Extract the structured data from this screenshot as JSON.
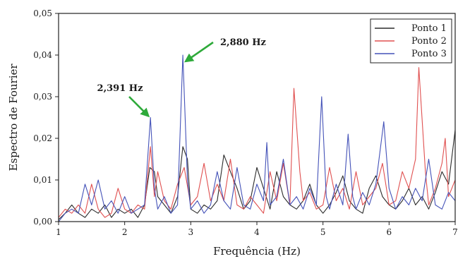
{
  "chart_data": {
    "type": "line",
    "xlabel": "Frequência (Hz)",
    "ylabel": "Espectro de Fourier",
    "xlim": [
      1,
      7
    ],
    "ylim": [
      0,
      0.05
    ],
    "x_ticks": [
      "1",
      "2",
      "3",
      "4",
      "5",
      "6",
      "7"
    ],
    "y_ticks": [
      "0,00",
      "0,01",
      "0,02",
      "0,03",
      "0,04",
      "0,05"
    ],
    "grid": false,
    "legend_position": "top-right",
    "annotations": [
      {
        "text": "2,880 Hz",
        "x": 2.88,
        "y": 0.0395,
        "arrow_color": "#2eaa3a"
      },
      {
        "text": "2,391 Hz",
        "x": 2.391,
        "y": 0.0245,
        "arrow_color": "#2eaa3a"
      }
    ],
    "series": [
      {
        "name": "Ponto 1",
        "color": "#2b2b2b",
        "points": [
          [
            1.0,
            0.0005
          ],
          [
            1.1,
            0.002
          ],
          [
            1.2,
            0.004
          ],
          [
            1.3,
            0.002
          ],
          [
            1.4,
            0.001
          ],
          [
            1.5,
            0.003
          ],
          [
            1.6,
            0.002
          ],
          [
            1.7,
            0.004
          ],
          [
            1.8,
            0.001
          ],
          [
            1.9,
            0.003
          ],
          [
            2.0,
            0.002
          ],
          [
            2.1,
            0.003
          ],
          [
            2.2,
            0.001
          ],
          [
            2.3,
            0.004
          ],
          [
            2.38,
            0.013
          ],
          [
            2.45,
            0.012
          ],
          [
            2.5,
            0.006
          ],
          [
            2.6,
            0.004
          ],
          [
            2.7,
            0.002
          ],
          [
            2.8,
            0.006
          ],
          [
            2.88,
            0.018
          ],
          [
            2.95,
            0.015
          ],
          [
            3.0,
            0.003
          ],
          [
            3.1,
            0.002
          ],
          [
            3.2,
            0.004
          ],
          [
            3.3,
            0.003
          ],
          [
            3.4,
            0.005
          ],
          [
            3.5,
            0.016
          ],
          [
            3.6,
            0.012
          ],
          [
            3.7,
            0.008
          ],
          [
            3.8,
            0.003
          ],
          [
            3.9,
            0.005
          ],
          [
            4.0,
            0.013
          ],
          [
            4.1,
            0.008
          ],
          [
            4.2,
            0.003
          ],
          [
            4.3,
            0.012
          ],
          [
            4.4,
            0.006
          ],
          [
            4.5,
            0.004
          ],
          [
            4.6,
            0.003
          ],
          [
            4.7,
            0.005
          ],
          [
            4.8,
            0.009
          ],
          [
            4.9,
            0.004
          ],
          [
            5.0,
            0.002
          ],
          [
            5.1,
            0.004
          ],
          [
            5.2,
            0.007
          ],
          [
            5.3,
            0.011
          ],
          [
            5.4,
            0.005
          ],
          [
            5.5,
            0.003
          ],
          [
            5.6,
            0.002
          ],
          [
            5.7,
            0.008
          ],
          [
            5.8,
            0.011
          ],
          [
            5.9,
            0.006
          ],
          [
            6.0,
            0.004
          ],
          [
            6.1,
            0.003
          ],
          [
            6.2,
            0.005
          ],
          [
            6.3,
            0.008
          ],
          [
            6.4,
            0.004
          ],
          [
            6.5,
            0.006
          ],
          [
            6.6,
            0.003
          ],
          [
            6.7,
            0.007
          ],
          [
            6.8,
            0.012
          ],
          [
            6.9,
            0.009
          ],
          [
            7.0,
            0.022
          ]
        ]
      },
      {
        "name": "Ponto 2",
        "color": "#e05050",
        "points": [
          [
            1.0,
            0.001
          ],
          [
            1.1,
            0.003
          ],
          [
            1.2,
            0.002
          ],
          [
            1.3,
            0.004
          ],
          [
            1.4,
            0.002
          ],
          [
            1.5,
            0.009
          ],
          [
            1.6,
            0.003
          ],
          [
            1.7,
            0.001
          ],
          [
            1.8,
            0.002
          ],
          [
            1.9,
            0.008
          ],
          [
            2.0,
            0.003
          ],
          [
            2.1,
            0.002
          ],
          [
            2.2,
            0.004
          ],
          [
            2.3,
            0.003
          ],
          [
            2.39,
            0.018
          ],
          [
            2.45,
            0.006
          ],
          [
            2.5,
            0.012
          ],
          [
            2.6,
            0.005
          ],
          [
            2.7,
            0.003
          ],
          [
            2.8,
            0.009
          ],
          [
            2.9,
            0.013
          ],
          [
            3.0,
            0.004
          ],
          [
            3.1,
            0.006
          ],
          [
            3.2,
            0.014
          ],
          [
            3.3,
            0.005
          ],
          [
            3.4,
            0.009
          ],
          [
            3.5,
            0.005
          ],
          [
            3.6,
            0.015
          ],
          [
            3.7,
            0.004
          ],
          [
            3.8,
            0.003
          ],
          [
            3.9,
            0.006
          ],
          [
            4.0,
            0.004
          ],
          [
            4.1,
            0.002
          ],
          [
            4.2,
            0.012
          ],
          [
            4.3,
            0.005
          ],
          [
            4.4,
            0.014
          ],
          [
            4.5,
            0.004
          ],
          [
            4.56,
            0.032
          ],
          [
            4.65,
            0.012
          ],
          [
            4.7,
            0.005
          ],
          [
            4.8,
            0.007
          ],
          [
            4.9,
            0.003
          ],
          [
            5.0,
            0.004
          ],
          [
            5.1,
            0.013
          ],
          [
            5.2,
            0.005
          ],
          [
            5.3,
            0.008
          ],
          [
            5.4,
            0.003
          ],
          [
            5.5,
            0.012
          ],
          [
            5.6,
            0.004
          ],
          [
            5.7,
            0.006
          ],
          [
            5.8,
            0.008
          ],
          [
            5.9,
            0.014
          ],
          [
            6.0,
            0.004
          ],
          [
            6.1,
            0.005
          ],
          [
            6.2,
            0.012
          ],
          [
            6.3,
            0.008
          ],
          [
            6.4,
            0.015
          ],
          [
            6.45,
            0.037
          ],
          [
            6.55,
            0.012
          ],
          [
            6.6,
            0.004
          ],
          [
            6.7,
            0.008
          ],
          [
            6.8,
            0.014
          ],
          [
            6.85,
            0.02
          ],
          [
            6.9,
            0.006
          ],
          [
            7.0,
            0.01
          ]
        ]
      },
      {
        "name": "Ponto 3",
        "color": "#4452b8",
        "points": [
          [
            1.0,
            0.0
          ],
          [
            1.1,
            0.002
          ],
          [
            1.2,
            0.003
          ],
          [
            1.3,
            0.002
          ],
          [
            1.4,
            0.009
          ],
          [
            1.5,
            0.004
          ],
          [
            1.6,
            0.01
          ],
          [
            1.7,
            0.003
          ],
          [
            1.8,
            0.005
          ],
          [
            1.9,
            0.002
          ],
          [
            2.0,
            0.006
          ],
          [
            2.1,
            0.002
          ],
          [
            2.2,
            0.003
          ],
          [
            2.3,
            0.004
          ],
          [
            2.39,
            0.025
          ],
          [
            2.45,
            0.008
          ],
          [
            2.5,
            0.003
          ],
          [
            2.6,
            0.006
          ],
          [
            2.7,
            0.002
          ],
          [
            2.8,
            0.004
          ],
          [
            2.88,
            0.04
          ],
          [
            2.95,
            0.01
          ],
          [
            3.0,
            0.003
          ],
          [
            3.1,
            0.005
          ],
          [
            3.2,
            0.002
          ],
          [
            3.3,
            0.004
          ],
          [
            3.4,
            0.012
          ],
          [
            3.5,
            0.005
          ],
          [
            3.6,
            0.003
          ],
          [
            3.7,
            0.013
          ],
          [
            3.8,
            0.004
          ],
          [
            3.9,
            0.003
          ],
          [
            4.0,
            0.009
          ],
          [
            4.1,
            0.005
          ],
          [
            4.15,
            0.019
          ],
          [
            4.2,
            0.004
          ],
          [
            4.3,
            0.006
          ],
          [
            4.4,
            0.015
          ],
          [
            4.5,
            0.004
          ],
          [
            4.6,
            0.006
          ],
          [
            4.7,
            0.003
          ],
          [
            4.8,
            0.008
          ],
          [
            4.9,
            0.004
          ],
          [
            4.98,
            0.03
          ],
          [
            5.05,
            0.006
          ],
          [
            5.1,
            0.003
          ],
          [
            5.2,
            0.009
          ],
          [
            5.3,
            0.004
          ],
          [
            5.38,
            0.021
          ],
          [
            5.45,
            0.006
          ],
          [
            5.5,
            0.003
          ],
          [
            5.6,
            0.007
          ],
          [
            5.7,
            0.004
          ],
          [
            5.8,
            0.009
          ],
          [
            5.92,
            0.024
          ],
          [
            6.0,
            0.008
          ],
          [
            6.1,
            0.003
          ],
          [
            6.2,
            0.006
          ],
          [
            6.3,
            0.004
          ],
          [
            6.4,
            0.008
          ],
          [
            6.5,
            0.005
          ],
          [
            6.6,
            0.015
          ],
          [
            6.7,
            0.004
          ],
          [
            6.8,
            0.003
          ],
          [
            6.9,
            0.007
          ],
          [
            7.0,
            0.005
          ]
        ]
      }
    ]
  }
}
